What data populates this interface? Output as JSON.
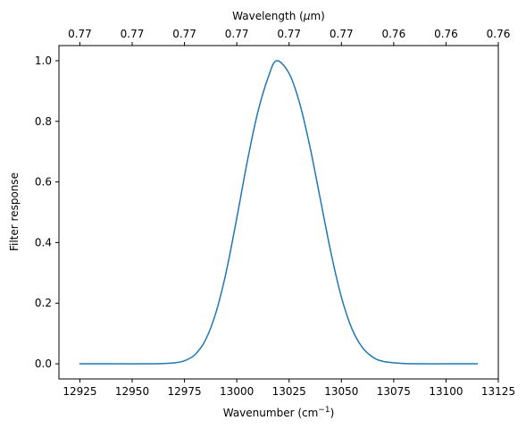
{
  "chart_data": {
    "type": "line",
    "xlabel_base": "Wavenumber (cm",
    "xlabel_sup": "−1",
    "xlabel_end": ")",
    "ylabel": "Filter response",
    "top_xlabel_pre": "Wavelength (",
    "top_xlabel_italic": "μ",
    "top_xlabel_post": "m)",
    "xlim": [
      12915,
      13125
    ],
    "ylim": [
      -0.05,
      1.05
    ],
    "x_ticks": [
      12925,
      12950,
      12975,
      13000,
      13025,
      13050,
      13075,
      13100,
      13125
    ],
    "y_ticks": [
      0.0,
      0.2,
      0.4,
      0.6,
      0.8,
      1.0
    ],
    "y_tick_labels": [
      "0.0",
      "0.2",
      "0.4",
      "0.6",
      "0.8",
      "1.0"
    ],
    "top_ticks_x": [
      12925,
      12950,
      12975,
      13000,
      13025,
      13050,
      13075,
      13100,
      13125
    ],
    "top_tick_labels": [
      "0.77",
      "0.77",
      "0.77",
      "0.77",
      "0.77",
      "0.77",
      "0.76",
      "0.76",
      "0.76"
    ],
    "series": [
      {
        "color": "#1f77b4",
        "x": [
          12925,
          12935,
          12945,
          12955,
          12965,
          12970,
          12975,
          12980,
          12985,
          12990,
          12995,
          13000,
          13005,
          13010,
          13015,
          13019,
          13025,
          13030,
          13035,
          13040,
          13045,
          13050,
          13055,
          13060,
          13065,
          13070,
          13080,
          13090,
          13100,
          13115
        ],
        "y": [
          0.0,
          0.0,
          0.0,
          0.0,
          0.001,
          0.003,
          0.01,
          0.03,
          0.078,
          0.168,
          0.305,
          0.481,
          0.667,
          0.829,
          0.945,
          1.0,
          0.958,
          0.861,
          0.715,
          0.541,
          0.367,
          0.22,
          0.116,
          0.054,
          0.022,
          0.008,
          0.001,
          0.0,
          0.0,
          0.0
        ]
      }
    ]
  }
}
